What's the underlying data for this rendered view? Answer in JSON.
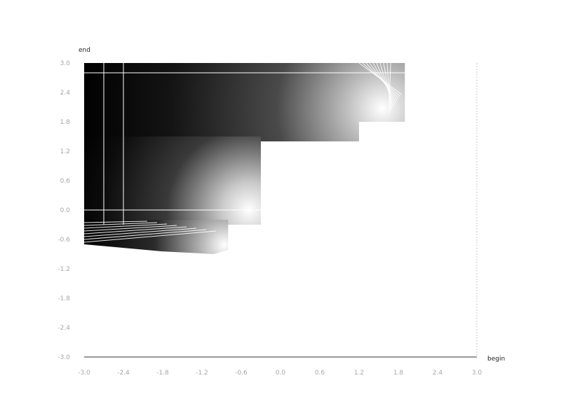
{
  "chart_data": {
    "type": "heatmap",
    "title": "",
    "xlabel": "begin",
    "ylabel": "end",
    "xlim": [
      -3.0,
      3.0
    ],
    "ylim": [
      -3.0,
      3.0
    ],
    "x_ticks": [
      "-3.0",
      "-2.4",
      "-1.8",
      "-1.2",
      "-0.6",
      "0.0",
      "0.6",
      "1.2",
      "1.8",
      "2.4",
      "3.0"
    ],
    "y_ticks": [
      "3.0",
      "2.4",
      "1.8",
      "1.2",
      "0.6",
      "0.0",
      "-0.6",
      "-1.2",
      "-1.8",
      "-2.4",
      "-3.0"
    ],
    "grid": false,
    "colormap": "black-to-white",
    "color_low": "#000000",
    "color_high": "#ffffff",
    "upper_region": {
      "x_range": [
        -3.0,
        1.9
      ],
      "y_range": [
        1.4,
        3.0
      ],
      "steps": [
        {
          "x_end": 1.9,
          "y_start": 1.8
        },
        {
          "x_end": 1.2,
          "y_start": 1.4
        }
      ],
      "bright_center": [
        1.5,
        2.0
      ]
    },
    "middle_region": {
      "x_range": [
        -3.0,
        -0.3
      ],
      "y_range": [
        -0.3,
        1.5
      ],
      "bright_center": [
        -0.6,
        0.0
      ]
    },
    "lower_region": {
      "x_range": [
        -3.0,
        -0.8
      ],
      "y_range": [
        -0.9,
        -0.2
      ],
      "bright_center": [
        -1.0,
        -0.7
      ]
    },
    "guide_lines_x": [
      -2.7,
      -2.4
    ],
    "guide_lines_y": [
      2.8,
      0.0
    ]
  }
}
